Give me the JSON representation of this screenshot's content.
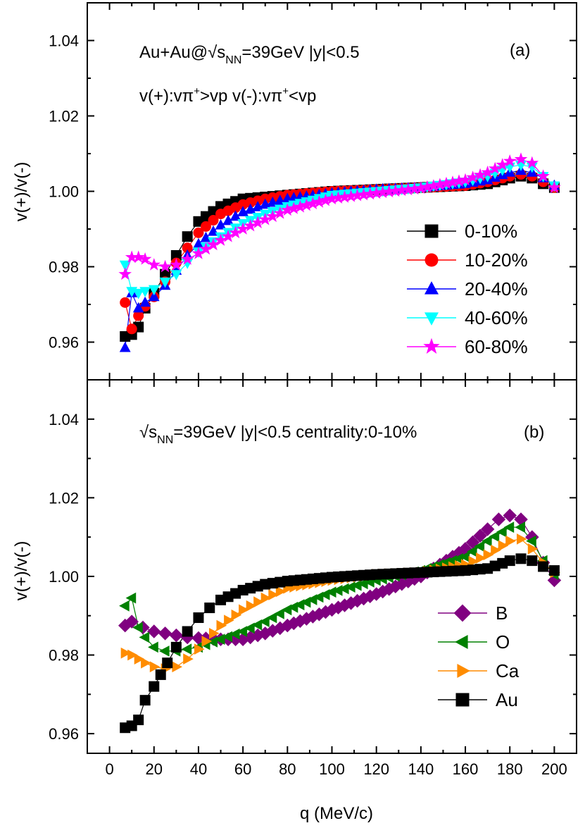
{
  "chart_data": [
    {
      "type": "scatter",
      "panel_label": "(a)",
      "annotation_line1": "Au+Au@√sₙₙ=39GeV |y|<0.5",
      "annotation_line1_parts": {
        "prefix": "Au+Au@√s",
        "sub": "NN",
        "suffix": "=39GeV |y|<0.5"
      },
      "annotation_line2_parts": {
        "a": "v(+):vπ",
        "sup1": "+",
        "b": ">vp v(-):vπ",
        "sup2": "+",
        "c": "<vp"
      },
      "ylabel": "v(+)/v(-)",
      "xlim": [
        -10,
        210
      ],
      "ylim": [
        0.95,
        1.05
      ],
      "yticks": [
        "0.96",
        "0.98",
        "1.00",
        "1.02",
        "1.04"
      ],
      "ytick_values": [
        0.96,
        0.98,
        1.0,
        1.02,
        1.04
      ],
      "legend_position": "right-middle",
      "series": [
        {
          "name": "0-10%",
          "color": "#000000",
          "marker": "square",
          "x": [
            7,
            10,
            13,
            16,
            20,
            25,
            30,
            35,
            40,
            50,
            60,
            70,
            80,
            100,
            120,
            140,
            160,
            170,
            180,
            185,
            190,
            195,
            200
          ],
          "y": [
            0.9615,
            0.962,
            0.964,
            0.969,
            0.973,
            0.978,
            0.983,
            0.988,
            0.992,
            0.996,
            0.998,
            0.9985,
            0.999,
            1.0,
            1.0005,
            1.001,
            1.0015,
            1.002,
            1.0035,
            1.004,
            1.0035,
            1.002,
            1.001
          ]
        },
        {
          "name": "10-20%",
          "color": "#ff0000",
          "marker": "circle",
          "x": [
            7,
            10,
            13,
            16,
            20,
            25,
            30,
            35,
            40,
            50,
            60,
            70,
            80,
            100,
            120,
            140,
            160,
            170,
            180,
            185,
            190,
            195,
            200
          ],
          "y": [
            0.9705,
            0.9635,
            0.967,
            0.9695,
            0.972,
            0.976,
            0.981,
            0.985,
            0.989,
            0.994,
            0.9965,
            0.998,
            0.999,
            1.0,
            1.0005,
            1.001,
            1.0015,
            1.0025,
            1.004,
            1.0045,
            1.004,
            1.0025,
            1.001
          ]
        },
        {
          "name": "20-40%",
          "color": "#0000ff",
          "marker": "triangle-up",
          "x": [
            7,
            10,
            13,
            16,
            20,
            25,
            30,
            35,
            40,
            50,
            60,
            70,
            80,
            100,
            120,
            140,
            160,
            170,
            180,
            185,
            190,
            195,
            200
          ],
          "y": [
            0.9585,
            0.973,
            0.969,
            0.9705,
            0.972,
            0.975,
            0.979,
            0.983,
            0.986,
            0.991,
            0.9945,
            0.9965,
            0.998,
            0.9995,
            1.0005,
            1.001,
            1.002,
            1.003,
            1.005,
            1.0055,
            1.005,
            1.0035,
            1.0015
          ]
        },
        {
          "name": "40-60%",
          "color": "#00ffff",
          "marker": "triangle-down",
          "x": [
            7,
            10,
            13,
            16,
            20,
            25,
            30,
            35,
            40,
            50,
            60,
            70,
            80,
            100,
            120,
            140,
            160,
            170,
            180,
            185,
            190,
            195,
            200
          ],
          "y": [
            0.9805,
            0.9735,
            0.973,
            0.9735,
            0.974,
            0.976,
            0.978,
            0.981,
            0.984,
            0.988,
            0.9915,
            0.994,
            0.996,
            0.999,
            1.0,
            1.001,
            1.0025,
            1.004,
            1.0065,
            1.007,
            1.0065,
            1.004,
            1.0015
          ]
        },
        {
          "name": "60-80%",
          "color": "#ff00ff",
          "marker": "star",
          "x": [
            7,
            10,
            13,
            16,
            20,
            25,
            30,
            35,
            40,
            50,
            60,
            70,
            80,
            100,
            120,
            140,
            160,
            170,
            180,
            185,
            190,
            195,
            200
          ],
          "y": [
            0.978,
            0.9825,
            0.9825,
            0.982,
            0.9805,
            0.98,
            0.9805,
            0.982,
            0.9835,
            0.987,
            0.99,
            0.9925,
            0.995,
            0.998,
            0.9995,
            1.0008,
            1.003,
            1.005,
            1.008,
            1.0085,
            1.0075,
            1.004,
            1.001
          ]
        }
      ]
    },
    {
      "type": "scatter",
      "panel_label": "(b)",
      "annotation_parts": {
        "prefix": "√s",
        "sub": "NN",
        "suffix": "=39GeV |y|<0.5 centrality:0-10%"
      },
      "xlabel": "q (MeV/c)",
      "ylabel": "v(+)/v(-)",
      "xlim": [
        -10,
        210
      ],
      "ylim": [
        0.955,
        1.05
      ],
      "xticks": [
        "0",
        "20",
        "40",
        "60",
        "80",
        "100",
        "120",
        "140",
        "160",
        "180",
        "200"
      ],
      "xtick_values": [
        0,
        20,
        40,
        60,
        80,
        100,
        120,
        140,
        160,
        180,
        200
      ],
      "yticks": [
        "0.96",
        "0.98",
        "1.00",
        "1.02",
        "1.04"
      ],
      "ytick_values": [
        0.96,
        0.98,
        1.0,
        1.02,
        1.04
      ],
      "legend_position": "bottom-right",
      "series": [
        {
          "name": "B",
          "color": "#800080",
          "marker": "diamond",
          "x": [
            7,
            10,
            15,
            20,
            25,
            30,
            35,
            40,
            50,
            60,
            70,
            80,
            100,
            120,
            140,
            160,
            170,
            175,
            180,
            185,
            190,
            195,
            200
          ],
          "y": [
            0.9875,
            0.9885,
            0.987,
            0.986,
            0.9855,
            0.985,
            0.9845,
            0.9843,
            0.984,
            0.984,
            0.9855,
            0.9875,
            0.9915,
            0.9955,
            1.0,
            1.007,
            1.012,
            1.0145,
            1.0155,
            1.0145,
            1.01,
            1.0035,
            0.999
          ]
        },
        {
          "name": "O",
          "color": "#008000",
          "marker": "triangle-left",
          "x": [
            7,
            10,
            13,
            16,
            20,
            25,
            30,
            35,
            40,
            50,
            60,
            70,
            80,
            100,
            120,
            140,
            160,
            170,
            180,
            185,
            190,
            195,
            200
          ],
          "y": [
            0.9925,
            0.9945,
            0.987,
            0.9845,
            0.982,
            0.981,
            0.981,
            0.9815,
            0.982,
            0.984,
            0.986,
            0.9885,
            0.9915,
            0.996,
            0.999,
            1.0015,
            1.005,
            1.009,
            1.0125,
            1.0125,
            1.009,
            1.004,
            1.0005
          ]
        },
        {
          "name": "Ca",
          "color": "#ff8c00",
          "marker": "triangle-right",
          "x": [
            7,
            10,
            13,
            16,
            20,
            25,
            30,
            35,
            40,
            50,
            60,
            70,
            80,
            100,
            120,
            140,
            160,
            170,
            180,
            185,
            190,
            195,
            200
          ],
          "y": [
            0.9805,
            0.98,
            0.979,
            0.978,
            0.977,
            0.9765,
            0.977,
            0.979,
            0.9815,
            0.9875,
            0.9915,
            0.9945,
            0.997,
            0.999,
            1.0005,
            1.001,
            1.003,
            1.0055,
            1.009,
            1.0095,
            1.007,
            1.0035,
            1.001
          ]
        },
        {
          "name": "Au",
          "color": "#000000",
          "marker": "square",
          "x": [
            7,
            10,
            13,
            16,
            20,
            23,
            26,
            30,
            35,
            40,
            45,
            50,
            60,
            70,
            80,
            100,
            120,
            140,
            160,
            170,
            180,
            185,
            190,
            195,
            200
          ],
          "y": [
            0.9615,
            0.962,
            0.9635,
            0.9685,
            0.972,
            0.975,
            0.978,
            0.982,
            0.986,
            0.9895,
            0.992,
            0.994,
            0.9965,
            0.998,
            0.9988,
            0.9998,
            1.0005,
            1.001,
            1.0015,
            1.002,
            1.004,
            1.0045,
            1.004,
            1.0025,
            1.0015
          ]
        }
      ]
    }
  ]
}
